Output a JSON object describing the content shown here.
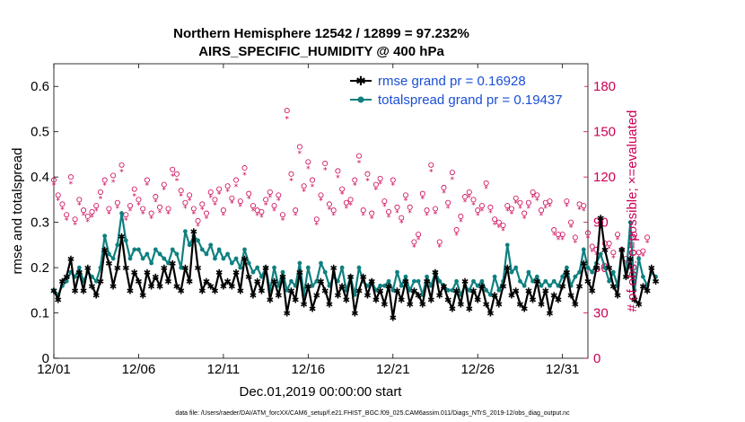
{
  "chart_data": {
    "type": "line",
    "title": "Northern Hemisphere 12542 / 12899 = 97.232%",
    "subtitle": "AIRS_SPECIFIC_HUMIDITY @ 400 hPa",
    "xlabel": "Dec.01,2019 00:00:00 start",
    "ylabel": "rmse and totalspread",
    "ylabel_right": "# of obs: o=possible; ×=evaluated",
    "footnote": "data file: /Users/raeder/DAI/ATM_forcXX/CAM6_setup/f.e21.FHIST_BGC.f09_025.CAM6assim.011/Diags_NTrS_2019-12/obs_diag_output.nc",
    "xlim": [
      0,
      31.5
    ],
    "ylim": [
      0,
      0.65
    ],
    "ylim_right": [
      0,
      195
    ],
    "x_ticks": [
      {
        "value": 0,
        "label": "12/01"
      },
      {
        "value": 5,
        "label": "12/06"
      },
      {
        "value": 10,
        "label": "12/11"
      },
      {
        "value": 15,
        "label": "12/16"
      },
      {
        "value": 20,
        "label": "12/21"
      },
      {
        "value": 25,
        "label": "12/26"
      },
      {
        "value": 30,
        "label": "12/31"
      }
    ],
    "y_ticks_left": [
      "0",
      "0.1",
      "0.2",
      "0.3",
      "0.4",
      "0.5",
      "0.6"
    ],
    "y_ticks_right": [
      "0",
      "30",
      "60",
      "90",
      "120",
      "150",
      "180"
    ],
    "legend_position": "top-right",
    "colors": {
      "rmse": "#000000",
      "spread": "#0f8080",
      "obs": "#cc0055",
      "legend_text": "#1a4fd6"
    },
    "series": [
      {
        "name": "rmse grand pr = 0.16928",
        "key": "rmse",
        "values": [
          0.15,
          0.13,
          0.17,
          0.18,
          0.22,
          0.15,
          0.19,
          0.15,
          0.2,
          0.16,
          0.14,
          0.17,
          0.24,
          0.21,
          0.16,
          0.2,
          0.27,
          0.2,
          0.15,
          0.19,
          0.17,
          0.14,
          0.19,
          0.16,
          0.18,
          0.16,
          0.2,
          0.17,
          0.21,
          0.16,
          0.15,
          0.2,
          0.17,
          0.28,
          0.2,
          0.15,
          0.17,
          0.16,
          0.15,
          0.19,
          0.16,
          0.17,
          0.16,
          0.19,
          0.15,
          0.22,
          0.18,
          0.14,
          0.17,
          0.15,
          0.2,
          0.13,
          0.17,
          0.14,
          0.18,
          0.1,
          0.15,
          0.13,
          0.19,
          0.12,
          0.16,
          0.11,
          0.14,
          0.17,
          0.15,
          0.12,
          0.2,
          0.14,
          0.16,
          0.13,
          0.18,
          0.1,
          0.15,
          0.18,
          0.14,
          0.17,
          0.13,
          0.15,
          0.12,
          0.16,
          0.09,
          0.15,
          0.13,
          0.17,
          0.12,
          0.15,
          0.14,
          0.12,
          0.17,
          0.13,
          0.19,
          0.14,
          0.16,
          0.13,
          0.11,
          0.15,
          0.12,
          0.17,
          0.11,
          0.15,
          0.13,
          0.16,
          0.12,
          0.1,
          0.14,
          0.12,
          0.16,
          0.2,
          0.14,
          0.15,
          0.12,
          0.11,
          0.15,
          0.13,
          0.17,
          0.12,
          0.15,
          0.1,
          0.14,
          0.13,
          0.16,
          0.19,
          0.14,
          0.12,
          0.16,
          0.21,
          0.17,
          0.15,
          0.2,
          0.31,
          0.24,
          0.2,
          0.16,
          0.14,
          0.24,
          0.18,
          0.22,
          0.13,
          0.12,
          0.16,
          0.15,
          0.2,
          0.17
        ]
      },
      {
        "name": "totalspread grand pr = 0.19437",
        "key": "spread",
        "values": [
          0.15,
          0.14,
          0.16,
          0.17,
          0.19,
          0.18,
          0.2,
          0.17,
          0.19,
          0.18,
          0.17,
          0.2,
          0.27,
          0.23,
          0.22,
          0.25,
          0.32,
          0.26,
          0.22,
          0.24,
          0.24,
          0.22,
          0.23,
          0.21,
          0.24,
          0.23,
          0.22,
          0.21,
          0.24,
          0.23,
          0.2,
          0.28,
          0.25,
          0.27,
          0.26,
          0.24,
          0.23,
          0.25,
          0.22,
          0.24,
          0.22,
          0.23,
          0.21,
          0.22,
          0.2,
          0.24,
          0.21,
          0.19,
          0.2,
          0.18,
          0.2,
          0.15,
          0.2,
          0.16,
          0.19,
          0.15,
          0.17,
          0.16,
          0.21,
          0.14,
          0.2,
          0.16,
          0.17,
          0.21,
          0.19,
          0.16,
          0.18,
          0.17,
          0.2,
          0.15,
          0.18,
          0.14,
          0.2,
          0.17,
          0.16,
          0.17,
          0.15,
          0.16,
          0.16,
          0.17,
          0.15,
          0.19,
          0.16,
          0.18,
          0.15,
          0.17,
          0.17,
          0.14,
          0.18,
          0.16,
          0.19,
          0.17,
          0.16,
          0.15,
          0.15,
          0.17,
          0.14,
          0.16,
          0.15,
          0.17,
          0.16,
          0.17,
          0.15,
          0.14,
          0.18,
          0.15,
          0.17,
          0.25,
          0.19,
          0.2,
          0.17,
          0.16,
          0.19,
          0.17,
          0.18,
          0.16,
          0.17,
          0.16,
          0.17,
          0.16,
          0.18,
          0.2,
          0.16,
          0.18,
          0.19,
          0.24,
          0.2,
          0.19,
          0.21,
          0.23,
          0.2,
          0.17,
          0.19,
          0.16,
          0.24,
          0.18,
          0.3,
          0.15,
          0.22,
          0.18,
          0.16,
          0.19,
          0.18
        ]
      },
      {
        "name": "obs possible",
        "key": "possible",
        "axis": "right",
        "marker": "circle",
        "values": [
          118,
          108,
          102,
          95,
          120,
          92,
          105,
          98,
          94,
          97,
          101,
          110,
          118,
          99,
          121,
          103,
          128,
          95,
          101,
          112,
          105,
          99,
          118,
          96,
          107,
          100,
          115,
          99,
          125,
          122,
          111,
          103,
          108,
          99,
          91,
          102,
          96,
          110,
          105,
          112,
          98,
          114,
          106,
          118,
          104,
          126,
          109,
          101,
          98,
          97,
          105,
          110,
          101,
          108,
          95,
          164,
          122,
          98,
          140,
          114,
          130,
          118,
          92,
          108,
          129,
          102,
          98,
          124,
          112,
          103,
          105,
          118,
          134,
          98,
          122,
          96,
          115,
          119,
          104,
          97,
          118,
          100,
          93,
          108,
          100,
          77,
          82,
          109,
          98,
          128,
          99,
          77,
          113,
          103,
          123,
          85,
          94,
          107,
          110,
          105,
          98,
          101,
          116,
          100,
          92,
          90,
          88,
          101,
          99,
          106,
          103,
          96,
          103,
          110,
          108,
          98,
          103,
          104,
          85,
          82,
          82,
          104,
          90,
          80,
          102,
          101,
          83,
          74,
          72,
          90,
          76,
          76,
          70,
          82,
          72,
          66,
          72,
          82,
          70,
          71,
          80
        ]
      },
      {
        "name": "obs evaluated",
        "key": "evaluated",
        "axis": "right",
        "marker": "asterisk",
        "values": [
          115,
          105,
          99,
          92,
          116,
          89,
          102,
          95,
          91,
          94,
          98,
          106,
          115,
          96,
          117,
          100,
          124,
          92,
          98,
          108,
          102,
          96,
          115,
          93,
          104,
          97,
          112,
          96,
          121,
          118,
          108,
          100,
          105,
          96,
          88,
          99,
          93,
          107,
          102,
          109,
          95,
          111,
          103,
          114,
          101,
          122,
          106,
          98,
          95,
          94,
          102,
          107,
          98,
          105,
          92,
          159,
          118,
          95,
          136,
          111,
          126,
          114,
          89,
          105,
          125,
          99,
          95,
          120,
          109,
          100,
          102,
          115,
          130,
          95,
          118,
          93,
          112,
          116,
          101,
          94,
          115,
          97,
          90,
          105,
          97,
          74,
          79,
          106,
          95,
          124,
          96,
          74,
          110,
          100,
          119,
          82,
          91,
          104,
          107,
          102,
          95,
          98,
          113,
          97,
          89,
          87,
          85,
          98,
          96,
          103,
          100,
          93,
          100,
          107,
          105,
          95,
          100,
          101,
          82,
          79,
          79,
          101,
          87,
          77,
          99,
          98,
          80,
          71,
          69,
          87,
          73,
          73,
          67,
          79,
          69,
          63,
          69,
          79,
          67,
          68,
          77
        ]
      }
    ]
  }
}
